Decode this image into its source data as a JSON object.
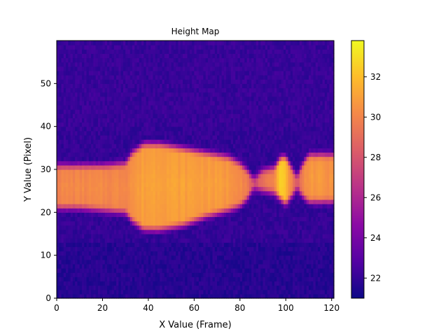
{
  "chart_data": {
    "type": "heatmap",
    "title": "Height Map",
    "xlabel": "X Value (Frame)",
    "ylabel": "Y Value (Pixel)",
    "xlim": [
      0,
      121
    ],
    "ylim": [
      0,
      60
    ],
    "x_ticks": [
      0,
      20,
      40,
      60,
      80,
      100,
      120
    ],
    "y_ticks": [
      0,
      10,
      20,
      30,
      40,
      50
    ],
    "colorbar": {
      "min": 21.0,
      "max": 33.8,
      "ticks": [
        22,
        24,
        26,
        28,
        30,
        32
      ],
      "colormap": "plasma"
    },
    "background_level": 22.0,
    "band_profile": [
      {
        "x": 0,
        "ymin": 21,
        "ymax": 31,
        "value": 29.8
      },
      {
        "x": 10,
        "ymin": 21,
        "ymax": 31,
        "value": 29.9
      },
      {
        "x": 20,
        "ymin": 20.5,
        "ymax": 31,
        "value": 29.9
      },
      {
        "x": 30,
        "ymin": 20,
        "ymax": 31.5,
        "value": 30.0
      },
      {
        "x": 33,
        "ymin": 18,
        "ymax": 34,
        "value": 30.3
      },
      {
        "x": 38,
        "ymin": 16,
        "ymax": 36,
        "value": 30.8
      },
      {
        "x": 45,
        "ymin": 16,
        "ymax": 36,
        "value": 30.9
      },
      {
        "x": 55,
        "ymin": 17,
        "ymax": 35,
        "value": 30.8
      },
      {
        "x": 65,
        "ymin": 19,
        "ymax": 34,
        "value": 30.7
      },
      {
        "x": 75,
        "ymin": 20.5,
        "ymax": 33,
        "value": 30.5
      },
      {
        "x": 80,
        "ymin": 21.5,
        "ymax": 31.5,
        "value": 30.2
      },
      {
        "x": 83,
        "ymin": 23,
        "ymax": 30,
        "value": 29.5
      },
      {
        "x": 86,
        "ymin": 25.5,
        "ymax": 28,
        "value": 27.5
      },
      {
        "x": 90,
        "ymin": 25,
        "ymax": 30,
        "value": 28.6
      },
      {
        "x": 95,
        "ymin": 24.5,
        "ymax": 30.5,
        "value": 30.0
      },
      {
        "x": 98,
        "ymin": 23,
        "ymax": 33,
        "value": 32.8
      },
      {
        "x": 100,
        "ymin": 22,
        "ymax": 33,
        "value": 31.5
      },
      {
        "x": 103,
        "ymin": 24,
        "ymax": 30,
        "value": 29.5
      },
      {
        "x": 105,
        "ymin": 25.5,
        "ymax": 28.5,
        "value": 27.5
      },
      {
        "x": 107,
        "ymin": 24,
        "ymax": 31,
        "value": 29.5
      },
      {
        "x": 110,
        "ymin": 22.5,
        "ymax": 33.5,
        "value": 30.6
      },
      {
        "x": 115,
        "ymin": 22.5,
        "ymax": 33.5,
        "value": 30.4
      },
      {
        "x": 120,
        "ymin": 22.5,
        "ymax": 33.5,
        "value": 30.2
      }
    ]
  }
}
